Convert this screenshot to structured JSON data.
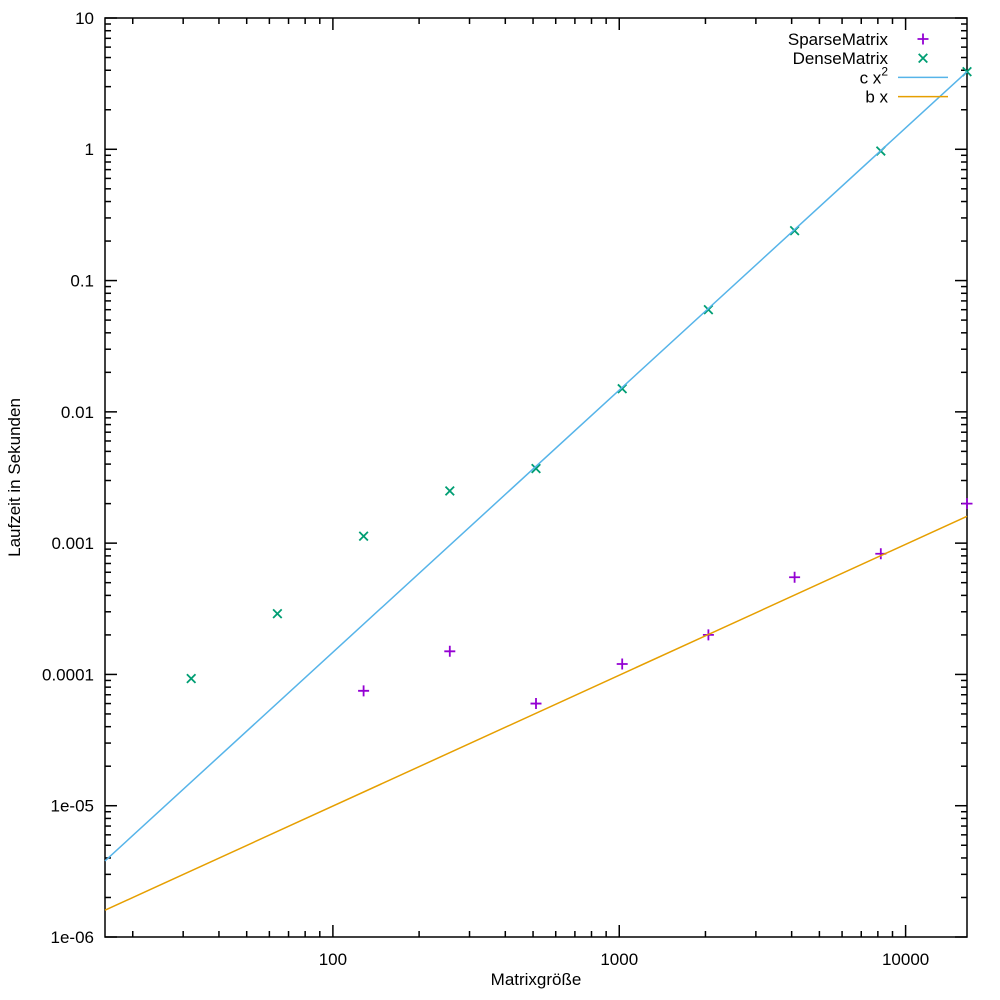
{
  "chart_data": {
    "type": "scatter",
    "title": "",
    "xlabel": "Matrixgröße",
    "ylabel": "Laufzeit in Sekunden",
    "x_scale": "log",
    "y_scale": "log",
    "xlim": [
      16,
      16384
    ],
    "ylim": [
      1e-06,
      10
    ],
    "grid": false,
    "legend_position": "top-right",
    "x_major_ticks": [
      100,
      1000,
      10000
    ],
    "x_major_tick_labels": [
      "100",
      "1000",
      "10000"
    ],
    "y_major_ticks": [
      1e-06,
      1e-05,
      0.0001,
      0.001,
      0.01,
      0.1,
      1,
      10
    ],
    "y_major_tick_labels": [
      "1e-06",
      "1e-05",
      "0.0001",
      "0.001",
      "0.01",
      "0.1",
      "1",
      "10"
    ],
    "colors": {
      "axis": "#000000",
      "sparse": "#9400d3",
      "dense": "#009e73",
      "quadratic_line": "#56b4e9",
      "linear_line": "#e69f00"
    },
    "series": [
      {
        "name": "SparseMatrix",
        "type": "points",
        "marker": "plus",
        "color": "#9400d3",
        "points": [
          [
            128,
            7.5e-05
          ],
          [
            256,
            0.00015
          ],
          [
            512,
            6e-05
          ],
          [
            1024,
            0.00012
          ],
          [
            2048,
            0.0002
          ],
          [
            4096,
            0.00055
          ],
          [
            8192,
            0.00083
          ],
          [
            16384,
            0.002
          ]
        ]
      },
      {
        "name": "DenseMatrix",
        "type": "points",
        "marker": "times",
        "color": "#009e73",
        "points": [
          [
            32,
            9.3e-05
          ],
          [
            64,
            0.00029
          ],
          [
            128,
            0.00113
          ],
          [
            256,
            0.0025
          ],
          [
            512,
            0.0037
          ],
          [
            1024,
            0.015
          ],
          [
            2048,
            0.06
          ],
          [
            4096,
            0.24
          ],
          [
            8192,
            0.97
          ],
          [
            16384,
            3.9
          ]
        ]
      },
      {
        "name": "c x",
        "name_sup": "2",
        "type": "line",
        "color": "#56b4e9",
        "points": [
          [
            16,
            3.8e-06
          ],
          [
            16384,
            3.9
          ]
        ]
      },
      {
        "name": "b x",
        "type": "line",
        "color": "#e69f00",
        "points": [
          [
            16,
            1.6e-06
          ],
          [
            16384,
            0.0016
          ]
        ]
      }
    ]
  }
}
